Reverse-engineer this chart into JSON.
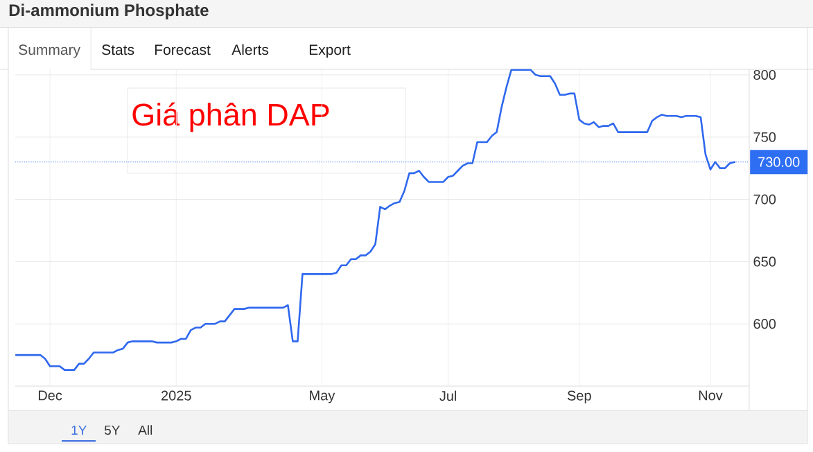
{
  "chart_data": {
    "type": "line",
    "title": "Di-ammonium Phosphate",
    "annotations": [
      "Giá phân DAP",
      "Summary",
      "Stats",
      "Forecast",
      "Alerts",
      "Export",
      "1Y",
      "5Y",
      "All"
    ],
    "categories": [
      null,
      null,
      null,
      null,
      null,
      null,
      null,
      "Dec",
      null,
      null,
      null,
      null,
      null,
      null,
      null,
      null,
      null,
      null,
      null,
      null,
      null,
      null,
      null,
      null,
      null,
      null,
      null,
      null,
      null,
      null,
      null,
      null,
      null,
      "2025",
      null,
      null,
      null,
      null,
      null,
      null,
      null,
      null,
      null,
      null,
      null,
      null,
      null,
      null,
      null,
      null,
      null,
      null,
      null,
      null,
      null,
      null,
      null,
      null,
      null,
      null,
      null,
      null,
      null,
      "May",
      null,
      null,
      null,
      null,
      null,
      null,
      null,
      null,
      null,
      null,
      null,
      null,
      null,
      null,
      null,
      null,
      null,
      null,
      null,
      null,
      null,
      null,
      null,
      null,
      null,
      "Jul",
      null,
      null,
      null,
      null,
      null,
      null,
      null,
      null,
      null,
      null,
      null,
      null,
      null,
      null,
      null,
      null,
      null,
      null,
      null,
      null,
      null,
      null,
      null,
      null,
      null,
      null,
      "Sep",
      null,
      null,
      null,
      null,
      null,
      null,
      null,
      null,
      null,
      null,
      null,
      null,
      null,
      null,
      null,
      null,
      null,
      null,
      null,
      null,
      null,
      null,
      null,
      null,
      null,
      null,
      "Nov",
      null,
      null,
      null,
      null,
      null
    ],
    "values": [
      575,
      575,
      575,
      575,
      575,
      575,
      572,
      566,
      566,
      566,
      563,
      563,
      563,
      568,
      568,
      572,
      577,
      577,
      577,
      577,
      577,
      579,
      580,
      585,
      586,
      586,
      586,
      586,
      586,
      585,
      585,
      585,
      585,
      586,
      588,
      588,
      595,
      597,
      597,
      600,
      600,
      600,
      602,
      602,
      607,
      612,
      612,
      612,
      613,
      613,
      613,
      613,
      613,
      613,
      613,
      613,
      615,
      586,
      586,
      640,
      640,
      640,
      640,
      640,
      640,
      640,
      641,
      647,
      647,
      652,
      652,
      655,
      655,
      658,
      664,
      694,
      692,
      695,
      697,
      698,
      707,
      721,
      721,
      723,
      718,
      714,
      714,
      714,
      714,
      718,
      719,
      723,
      727,
      729,
      729,
      746,
      746,
      746,
      751,
      754,
      774,
      790,
      804,
      804,
      804,
      804,
      804,
      800,
      799,
      799,
      799,
      793,
      784,
      784,
      785,
      785,
      764,
      761,
      760,
      762,
      758,
      759,
      759,
      761,
      754,
      754,
      754,
      754,
      754,
      754,
      754,
      763,
      766,
      768,
      767,
      767,
      767,
      766,
      767,
      767,
      767,
      766,
      736,
      724,
      730,
      725,
      725,
      729,
      730
    ],
    "color": "#2f68ee",
    "ylim": [
      550,
      805
    ],
    "yticks": [
      600,
      650,
      700,
      750,
      800
    ],
    "grid": true,
    "ref_lines": [
      {
        "axis": "y",
        "value": 730,
        "label": "730.00",
        "color": "#2e6ef2",
        "line_style": "dotted"
      }
    ]
  }
}
